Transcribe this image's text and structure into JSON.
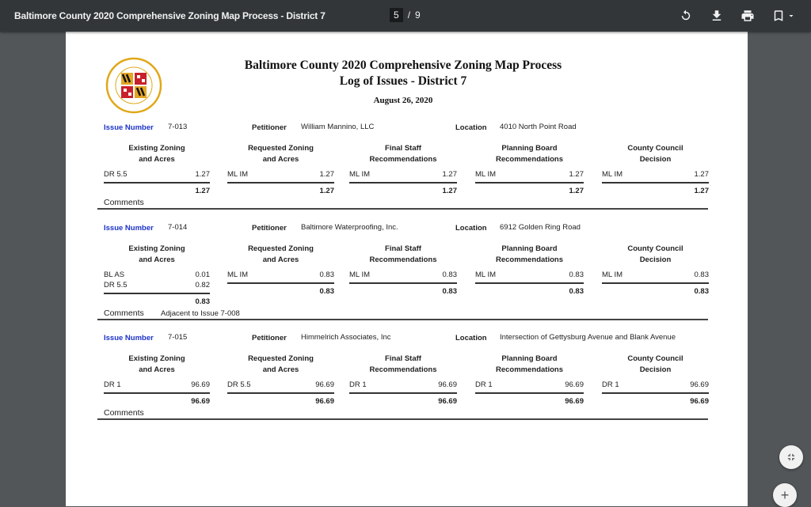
{
  "viewer": {
    "title": "Baltimore County 2020 Comprehensive Zoning Map Process - District 7",
    "current_page": "5",
    "page_separator": "/",
    "total_pages": "9",
    "icons": [
      "rotate-icon",
      "download-icon",
      "print-icon",
      "bookmark-icon",
      "chevron-down-icon"
    ],
    "fab_icons": [
      "fit-page-icon",
      "zoom-in-icon"
    ]
  },
  "document": {
    "seal_text": [
      "BALTIMORE COUNTY",
      "MARYLAND"
    ],
    "title_line1": "Baltimore County 2020 Comprehensive Zoning Map Process",
    "title_line2": "Log of Issues - District 7",
    "date": "August 26, 2020",
    "labels": {
      "issue_number": "Issue Number",
      "petitioner": "Petitioner",
      "location": "Location",
      "comments": "Comments"
    },
    "column_headers": [
      [
        "Existing Zoning",
        "and Acres"
      ],
      [
        "Requested Zoning",
        "and Acres"
      ],
      [
        "Final Staff",
        "Recommendations"
      ],
      [
        "Planning Board",
        "Recommendations"
      ],
      [
        "County Council",
        "Decision"
      ]
    ],
    "issues": [
      {
        "number": "7-013",
        "petitioner": "William Mannino, LLC",
        "location": "4010 North Point Road",
        "columns": [
          {
            "rows": [
              [
                "DR 5.5",
                "1.27"
              ]
            ],
            "total": "1.27"
          },
          {
            "rows": [
              [
                "ML IM",
                "1.27"
              ]
            ],
            "total": "1.27"
          },
          {
            "rows": [
              [
                "ML IM",
                "1.27"
              ]
            ],
            "total": "1.27"
          },
          {
            "rows": [
              [
                "ML IM",
                "1.27"
              ]
            ],
            "total": "1.27"
          },
          {
            "rows": [
              [
                "ML IM",
                "1.27"
              ]
            ],
            "total": "1.27"
          }
        ],
        "comment": ""
      },
      {
        "number": "7-014",
        "petitioner": "Baltimore Waterproofing, Inc.",
        "location": "6912 Golden Ring Road",
        "columns": [
          {
            "rows": [
              [
                "BL AS",
                "0.01"
              ],
              [
                "DR 5.5",
                "0.82"
              ]
            ],
            "total": "0.83"
          },
          {
            "rows": [
              [
                "ML IM",
                "0.83"
              ]
            ],
            "total": "0.83"
          },
          {
            "rows": [
              [
                "ML IM",
                "0.83"
              ]
            ],
            "total": "0.83"
          },
          {
            "rows": [
              [
                "ML IM",
                "0.83"
              ]
            ],
            "total": "0.83"
          },
          {
            "rows": [
              [
                "ML IM",
                "0.83"
              ]
            ],
            "total": "0.83"
          }
        ],
        "comment": "Adjacent to Issue 7-008"
      },
      {
        "number": "7-015",
        "petitioner": "Himmelrich Associates, Inc",
        "location": "Intersection of Gettysburg Avenue and Blank Avenue",
        "columns": [
          {
            "rows": [
              [
                "DR 1",
                "96.69"
              ]
            ],
            "total": "96.69"
          },
          {
            "rows": [
              [
                "DR 5.5",
                "96.69"
              ]
            ],
            "total": "96.69"
          },
          {
            "rows": [
              [
                "DR 1",
                "96.69"
              ]
            ],
            "total": "96.69"
          },
          {
            "rows": [
              [
                "DR 1",
                "96.69"
              ]
            ],
            "total": "96.69"
          },
          {
            "rows": [
              [
                "DR 1",
                "96.69"
              ]
            ],
            "total": "96.69"
          }
        ],
        "comment": ""
      }
    ]
  }
}
